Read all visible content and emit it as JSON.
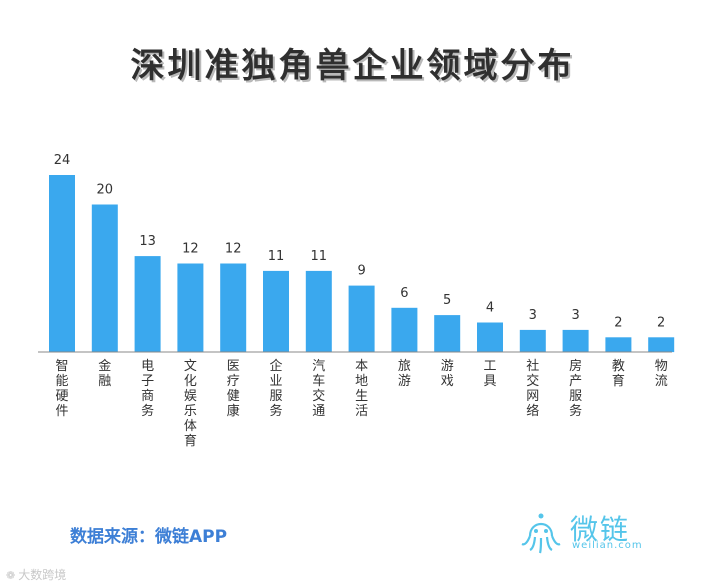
{
  "title": "深圳准独角兽企业领域分布",
  "source": "数据来源：微链APP",
  "logo": {
    "name": "微链",
    "url": "weilian.com"
  },
  "watermark": "大数跨境",
  "colors": {
    "bar": "#3aa8ee",
    "axis": "#888888",
    "title": "#2f2f2f",
    "source": "#3d7fd6",
    "logo": "#55c5ea"
  },
  "chart_data": {
    "type": "bar",
    "categories": [
      "智能硬件",
      "金融",
      "电子商务",
      "文化娱乐体育",
      "医疗健康",
      "企业服务",
      "汽车交通",
      "本地生活",
      "旅游",
      "游戏",
      "工具",
      "社交网络",
      "房产服务",
      "教育",
      "物流"
    ],
    "values": [
      24,
      20,
      13,
      12,
      12,
      11,
      11,
      9,
      6,
      5,
      4,
      3,
      3,
      2,
      2
    ],
    "title": "深圳准独角兽企业领域分布",
    "xlabel": "",
    "ylabel": "",
    "ylim": [
      0,
      24
    ],
    "grid": false,
    "legend": "none"
  }
}
